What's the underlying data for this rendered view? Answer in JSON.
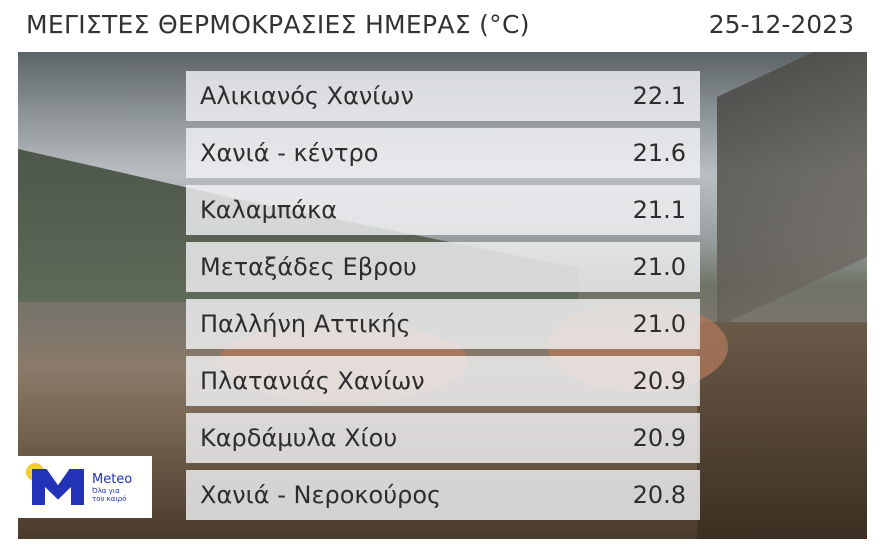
{
  "header": {
    "title": "ΜΕΓΙΣΤΕΣ ΘΕΡΜΟΚΡΑΣΙΕΣ ΗΜΕΡΑΣ (°C)",
    "date": "25-12-2023"
  },
  "rows": [
    {
      "station": "Αλικιανός Χανίων",
      "temp": "22.1"
    },
    {
      "station": "Χανιά - κέντρο",
      "temp": "21.6"
    },
    {
      "station": "Καλαμπάκα",
      "temp": "21.1"
    },
    {
      "station": "Μεταξάδες Εβρου",
      "temp": "21.0"
    },
    {
      "station": "Παλλήνη Αττικής",
      "temp": "21.0"
    },
    {
      "station": "Πλατανιάς Χανίων",
      "temp": "20.9"
    },
    {
      "station": "Καρδάμυλα Χίου",
      "temp": "20.9"
    },
    {
      "station": "Χανιά - Νεροκούρος",
      "temp": "20.8"
    }
  ],
  "logo": {
    "name": "Meteo",
    "tagline_1": "Όλα για",
    "tagline_2": "τον καιρό",
    "brand_color": "#2233b8",
    "sun_color": "#f2cf2c"
  }
}
